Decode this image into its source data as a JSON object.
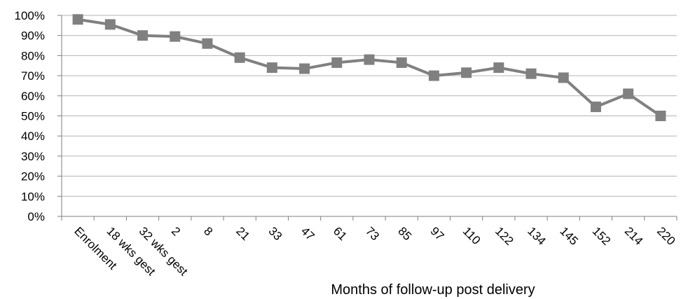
{
  "chart_data": {
    "type": "line",
    "title": "",
    "xlabel": "Months of follow-up post delivery",
    "ylabel": "",
    "ylim": [
      0,
      100
    ],
    "yticks": [
      "0%",
      "10%",
      "20%",
      "30%",
      "40%",
      "50%",
      "60%",
      "70%",
      "80%",
      "90%",
      "100%"
    ],
    "categories": [
      "Enrolment",
      "18 wks gest",
      "32 wks gest",
      "2",
      "8",
      "21",
      "33",
      "47",
      "61",
      "73",
      "85",
      "97",
      "110",
      "122",
      "134",
      "145",
      "152",
      "214",
      "220"
    ],
    "series": [
      {
        "values": [
          98,
          95.5,
          90,
          89.5,
          86,
          79,
          74,
          73.5,
          76.5,
          78,
          76.5,
          70,
          71.5,
          74,
          71,
          69,
          54.5,
          61,
          50
        ]
      }
    ],
    "grid": true,
    "legend": "none",
    "colors": {
      "line": "#808080",
      "marker": "#808080",
      "grid": "#b3b3b3",
      "axis": "#7f7f7f"
    }
  }
}
